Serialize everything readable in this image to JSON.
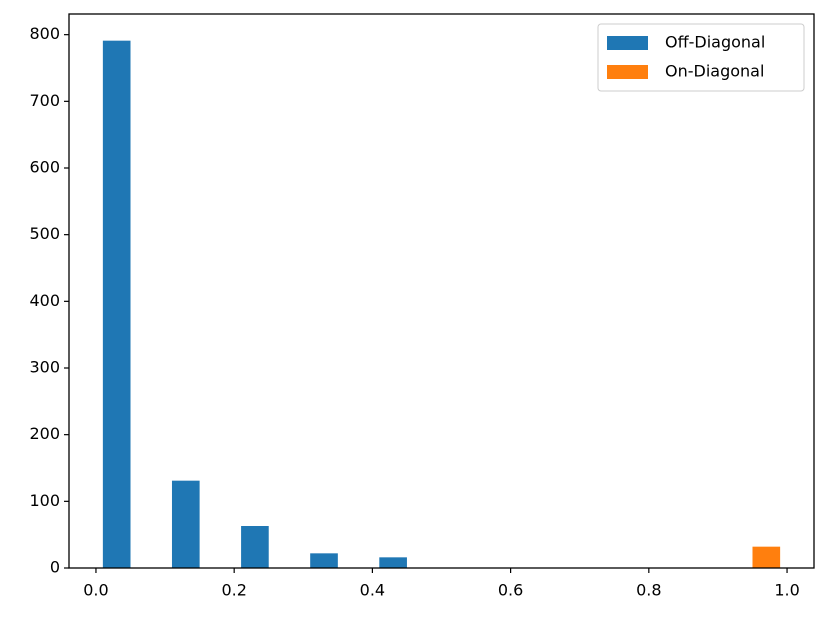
{
  "chart_data": {
    "type": "histogram",
    "bins": [
      0,
      0.1,
      0.2,
      0.3,
      0.4,
      0.5,
      0.6,
      0.7,
      0.8,
      0.9,
      1.0
    ],
    "series": [
      {
        "name": "Off-Diagonal",
        "color": "#1f77b4",
        "values": [
          791,
          131,
          63,
          22,
          16,
          0,
          0,
          0,
          0,
          0
        ]
      },
      {
        "name": "On-Diagonal",
        "color": "#ff7f0e",
        "values": [
          0,
          0,
          0,
          0,
          0,
          0,
          0,
          0,
          0,
          32
        ]
      }
    ],
    "xlim": [
      -0.039,
      1.039
    ],
    "ylim": [
      0,
      831
    ],
    "xticks": [
      {
        "value": 0,
        "label": "0.0"
      },
      0.2,
      0.4,
      0.6,
      0.8,
      {
        "value": 1,
        "label": "1.0"
      }
    ],
    "yticks": [
      0,
      100,
      200,
      300,
      400,
      500,
      600,
      700,
      800
    ],
    "legend": "upper right"
  }
}
